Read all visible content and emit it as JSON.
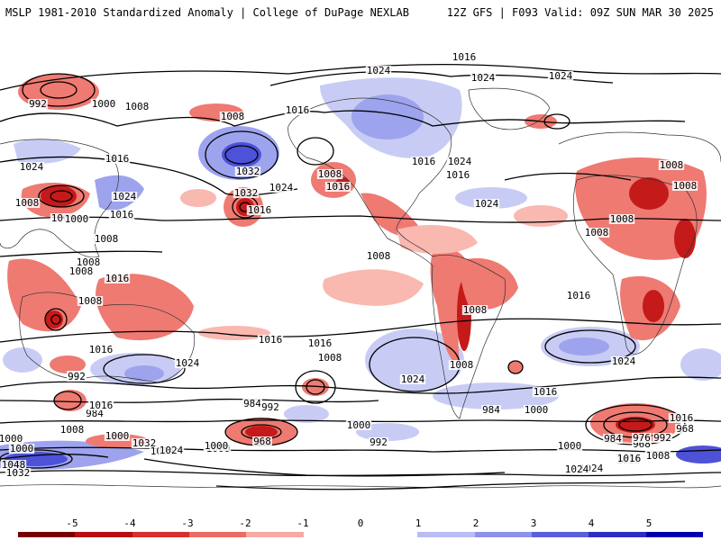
{
  "header": {
    "title_left": "MSLP 1981-2010 Standardized Anomaly | College of DuPage NEXLAB",
    "title_right": "12Z GFS | F093 Valid: 09Z SUN MAR 30 2025"
  },
  "colorbar": {
    "labels": [
      "-5",
      "-4",
      "-3",
      "-2",
      "-1",
      "0",
      "1",
      "2",
      "3",
      "4",
      "5"
    ],
    "colors": [
      "#7a0000",
      "#b80d12",
      "#d62f2f",
      "#ec6a63",
      "#f7aaa1",
      "#ffffff",
      "#ffffff",
      "#b8bdf3",
      "#8d92ea",
      "#5a5fdc",
      "#2c2ec4",
      "#0000b0"
    ]
  },
  "map": {
    "anomaly_colors": {
      "strong_neg": "#c51a1a",
      "neg": "#ee7a72",
      "weak_neg": "#f9b8b0",
      "weak_pos": "#c8ccf5",
      "pos": "#9ea3ee",
      "strong_pos": "#4d52d8"
    },
    "isobar_labels": [
      "1016",
      "1024",
      "1024",
      "1024",
      "992",
      "1000",
      "1008",
      "1008",
      "1016",
      "1032",
      "1016",
      "1016",
      "1016",
      "1024",
      "1024",
      "1016",
      "1032",
      "1024",
      "1024",
      "1000",
      "1008",
      "1008",
      "1016",
      "1008",
      "1008",
      "1008",
      "1024",
      "1008",
      "1000",
      "1008",
      "1016",
      "1016",
      "1008",
      "1008",
      "1008",
      "1016",
      "1016",
      "1016",
      "1024",
      "1008",
      "1008",
      "1024",
      "1024",
      "1016",
      "992",
      "1016",
      "1000",
      "992",
      "984",
      "1008",
      "1000",
      "1016",
      "1032",
      "1024",
      "1000",
      "984",
      "992",
      "968",
      "1000",
      "992",
      "1008",
      "984",
      "1000",
      "1008",
      "1016",
      "1024",
      "1024",
      "1016",
      "1000",
      "1016",
      "1008",
      "968",
      "984",
      "976",
      "992",
      "968",
      "1000",
      "1024",
      "1048",
      "1032",
      "1000"
    ]
  }
}
